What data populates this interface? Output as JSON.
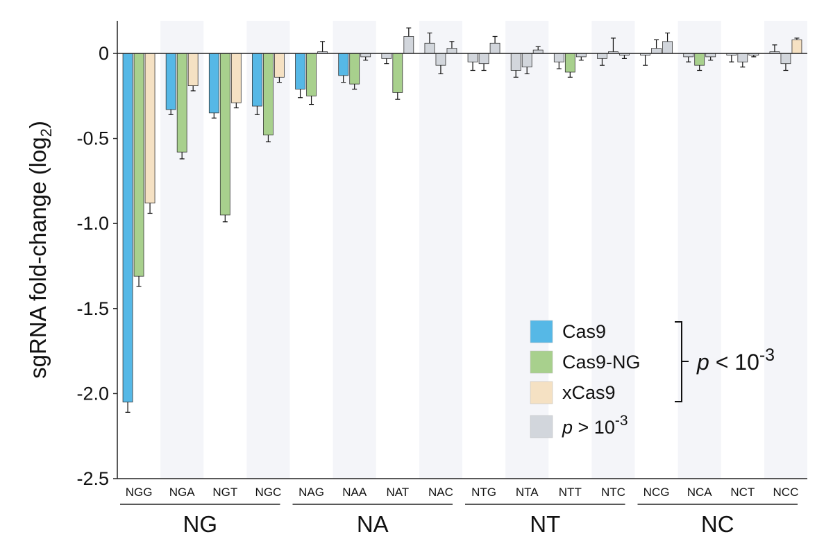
{
  "chart_data": {
    "type": "bar",
    "ylabel": "sgRNA fold-change (log",
    "ylabel_sub": "2",
    "ylabel_close": ")",
    "ylim": [
      -2.5,
      0.2
    ],
    "yticks": [
      "0",
      "-0.5",
      "-1.0",
      "-1.5",
      "-2.0",
      "-2.5"
    ],
    "ytick_values": [
      0,
      -0.5,
      -1.0,
      -1.5,
      -2.0,
      -2.5
    ],
    "categories": [
      "NGG",
      "NGA",
      "NGT",
      "NGC",
      "NAG",
      "NAA",
      "NAT",
      "NAC",
      "NTG",
      "NTA",
      "NTT",
      "NTC",
      "NCG",
      "NCA",
      "NCT",
      "NCC"
    ],
    "groups": [
      {
        "label": "NG",
        "categories": [
          "NGG",
          "NGA",
          "NGT",
          "NGC"
        ]
      },
      {
        "label": "NA",
        "categories": [
          "NAG",
          "NAA",
          "NAT",
          "NAC"
        ]
      },
      {
        "label": "NT",
        "categories": [
          "NTG",
          "NTA",
          "NTT",
          "NTC"
        ]
      },
      {
        "label": "NC",
        "categories": [
          "NCG",
          "NCA",
          "NCT",
          "NCC"
        ]
      }
    ],
    "series": [
      {
        "name": "Cas9",
        "values": [
          -2.05,
          -0.33,
          -0.35,
          -0.31,
          -0.21,
          -0.13,
          -0.03,
          0.06,
          -0.05,
          -0.1,
          -0.05,
          -0.03,
          -0.01,
          -0.02,
          -0.01,
          0.01
        ],
        "errors": [
          0.06,
          0.03,
          0.03,
          0.05,
          0.05,
          0.04,
          0.03,
          0.06,
          0.05,
          0.04,
          0.04,
          0.04,
          0.06,
          0.03,
          0.04,
          0.04
        ],
        "significant": [
          true,
          true,
          true,
          true,
          true,
          true,
          false,
          false,
          false,
          false,
          false,
          false,
          false,
          false,
          false,
          false
        ]
      },
      {
        "name": "Cas9-NG",
        "values": [
          -1.31,
          -0.58,
          -0.95,
          -0.48,
          -0.25,
          -0.18,
          -0.23,
          -0.07,
          -0.06,
          -0.08,
          -0.11,
          0.01,
          0.03,
          -0.07,
          -0.05,
          -0.06
        ],
        "errors": [
          0.06,
          0.04,
          0.04,
          0.04,
          0.05,
          0.03,
          0.04,
          0.05,
          0.04,
          0.04,
          0.03,
          0.08,
          0.05,
          0.03,
          0.03,
          0.04
        ],
        "significant": [
          true,
          true,
          true,
          true,
          true,
          true,
          true,
          false,
          false,
          false,
          true,
          false,
          false,
          true,
          false,
          false
        ]
      },
      {
        "name": "xCas9",
        "values": [
          -0.88,
          -0.19,
          -0.29,
          -0.14,
          0.01,
          -0.02,
          0.1,
          0.03,
          0.06,
          0.02,
          -0.02,
          -0.01,
          0.07,
          -0.02,
          -0.01,
          0.08
        ],
        "errors": [
          0.06,
          0.03,
          0.03,
          0.03,
          0.06,
          0.02,
          0.05,
          0.04,
          0.04,
          0.02,
          0.02,
          0.02,
          0.05,
          0.02,
          0.01,
          0.01
        ],
        "significant": [
          true,
          true,
          true,
          true,
          false,
          false,
          false,
          false,
          false,
          false,
          false,
          false,
          false,
          false,
          false,
          true
        ]
      }
    ],
    "legend": {
      "position": "bottom-right",
      "entries": [
        {
          "label": "Cas9",
          "color": "#56b8e6"
        },
        {
          "label": "Cas9-NG",
          "color": "#a8d08d"
        },
        {
          "label": "xCas9",
          "color": "#f5e1c3"
        },
        {
          "label_italic": "p",
          "label_rel": " > 10",
          "label_sup": "-3",
          "color": "#d2d6dc"
        }
      ],
      "bracket_italic": "p",
      "bracket_rel": " < 10",
      "bracket_sup": "-3"
    },
    "colors": {
      "Cas9": "#56b8e6",
      "Cas9-NG": "#a8d08d",
      "xCas9": "#f5e1c3",
      "nonsig": "#d2d6dc",
      "band": "#f4f5f9",
      "axis": "#222222"
    }
  }
}
